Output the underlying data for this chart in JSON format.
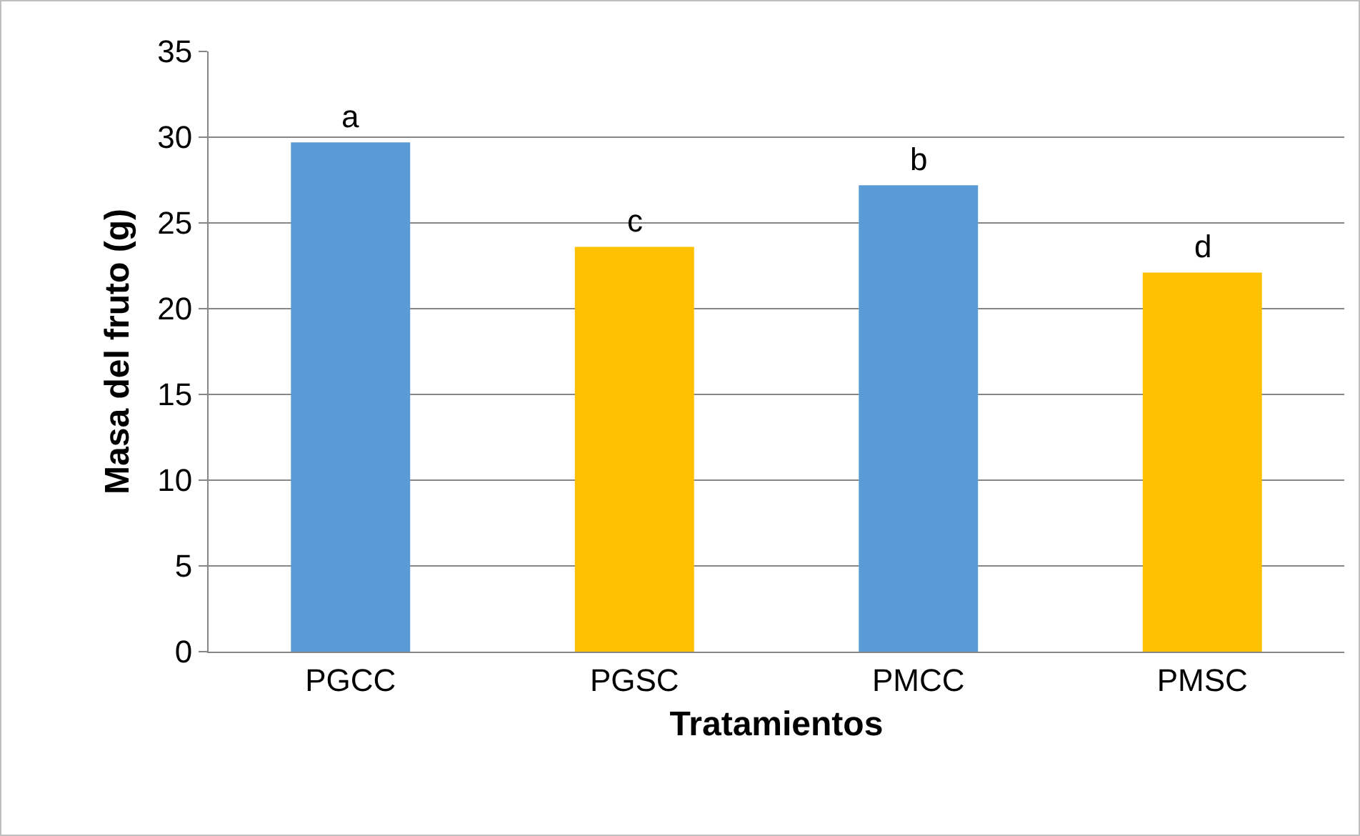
{
  "chart_data": {
    "type": "bar",
    "xlabel": "Tratamientos",
    "ylabel": "Masa del fruto (g)",
    "categories": [
      "PGCC",
      "PGSC",
      "PMCC",
      "PMSC"
    ],
    "values": [
      29.7,
      23.6,
      27.2,
      22.1
    ],
    "colors": [
      "#5b9bd5",
      "#ffc000",
      "#5b9bd5",
      "#ffc000"
    ],
    "ylim": [
      0,
      35
    ],
    "yticks": [
      0,
      5,
      10,
      15,
      20,
      25,
      30,
      35
    ],
    "grid": "y",
    "annotations": [
      {
        "text": "a",
        "x": "PGCC",
        "y": 29.7
      },
      {
        "text": "c",
        "x": "PGSC",
        "y": 23.6
      },
      {
        "text": "b",
        "x": "PMCC",
        "y": 27.2
      },
      {
        "text": "d",
        "x": "PMSC",
        "y": 22.1
      }
    ]
  }
}
